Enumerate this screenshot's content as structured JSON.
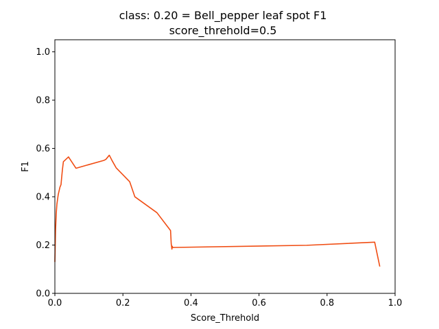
{
  "chart_data": {
    "type": "line",
    "title": "class: 0.20 = Bell_pepper leaf spot F1",
    "subtitle": "score_threhold=0.5",
    "xlabel": "Score_Threhold",
    "ylabel": "F1",
    "xlim": [
      0.0,
      1.0
    ],
    "ylim": [
      0.0,
      1.05
    ],
    "xticks": [
      "0.0",
      "0.2",
      "0.4",
      "0.6",
      "0.8",
      "1.0"
    ],
    "yticks": [
      "0.0",
      "0.2",
      "0.4",
      "0.6",
      "0.8",
      "1.0"
    ],
    "grid": false,
    "line_color": "#f04c12",
    "series": [
      {
        "x": [
          0.0,
          0.002,
          0.004,
          0.006,
          0.008,
          0.01,
          0.015,
          0.018,
          0.02,
          0.022,
          0.025,
          0.04,
          0.062,
          0.145,
          0.15,
          0.16,
          0.168,
          0.18,
          0.22,
          0.235,
          0.3,
          0.34,
          0.342,
          0.344,
          0.345,
          0.346,
          0.74,
          0.94,
          0.955
        ],
        "y": [
          0.13,
          0.26,
          0.33,
          0.37,
          0.39,
          0.41,
          0.44,
          0.45,
          0.48,
          0.51,
          0.545,
          0.565,
          0.518,
          0.551,
          0.555,
          0.572,
          0.55,
          0.52,
          0.462,
          0.4,
          0.334,
          0.26,
          0.205,
          0.183,
          0.195,
          0.19,
          0.199,
          0.212,
          0.111
        ]
      }
    ]
  }
}
